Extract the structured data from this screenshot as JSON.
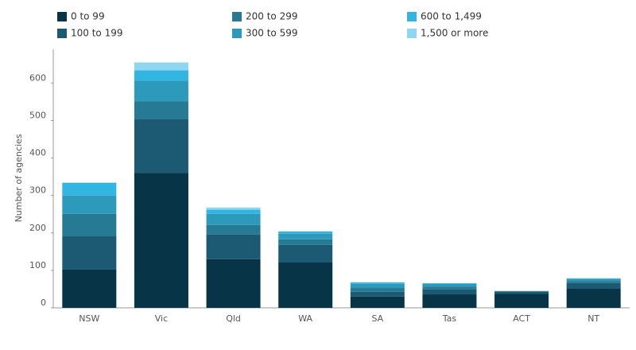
{
  "chart_data": {
    "type": "stacked_bar",
    "y_label": "Number of agencies",
    "categories": [
      "NSW",
      "Vic",
      "Qld",
      "WA",
      "SA",
      "Tas",
      "ACT",
      "NT"
    ],
    "series": [
      {
        "name": "0 to 99",
        "color": "#073447",
        "values": [
          102,
          360,
          130,
          121,
          30,
          36,
          38,
          51
        ]
      },
      {
        "name": "100 to 199",
        "color": "#1b5a72",
        "values": [
          89,
          144,
          66,
          47,
          13,
          13,
          5,
          15
        ]
      },
      {
        "name": "200 to 299",
        "color": "#277a93",
        "values": [
          60,
          47,
          25,
          15,
          10,
          8,
          2,
          6
        ]
      },
      {
        "name": "300 to 599",
        "color": "#2e9abb",
        "values": [
          49,
          55,
          30,
          15,
          11,
          7,
          0,
          5
        ]
      },
      {
        "name": "600 to 1,499",
        "color": "#33b5e1",
        "values": [
          34,
          28,
          11,
          6,
          4,
          2,
          0,
          2
        ]
      },
      {
        "name": "1,500 or more",
        "color": "#8fd6f0",
        "values": [
          0,
          21,
          6,
          0,
          0,
          0,
          0,
          0
        ]
      }
    ],
    "ylim": [
      0,
      690
    ],
    "yticks": [
      0,
      100,
      200,
      300,
      400,
      500,
      600
    ],
    "grid": false,
    "legend": "top"
  }
}
